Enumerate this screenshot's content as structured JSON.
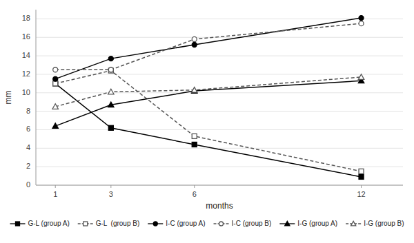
{
  "chart_data": {
    "type": "line",
    "x": [
      1,
      3,
      6,
      12
    ],
    "series": [
      {
        "name": "G-L (group A)",
        "values": [
          11.0,
          6.2,
          4.4,
          0.9
        ],
        "color": "#000000",
        "line_style": "solid",
        "marker": "square"
      },
      {
        "name": "G-L  (group B)",
        "values": [
          11.0,
          12.4,
          5.3,
          1.5
        ],
        "color": "#555555",
        "line_style": "dashed",
        "marker": "square"
      },
      {
        "name": "I-C (group A)",
        "values": [
          11.5,
          13.7,
          15.2,
          18.1
        ],
        "color": "#000000",
        "line_style": "solid",
        "marker": "circle"
      },
      {
        "name": "I-C (group B)",
        "values": [
          12.5,
          12.5,
          15.8,
          17.5
        ],
        "color": "#555555",
        "line_style": "dashed",
        "marker": "circle"
      },
      {
        "name": "I-G (group A)",
        "values": [
          6.4,
          8.7,
          10.2,
          11.3
        ],
        "color": "#000000",
        "line_style": "solid",
        "marker": "triangle"
      },
      {
        "name": "I-G (group B)",
        "values": [
          8.5,
          10.1,
          10.3,
          11.7
        ],
        "color": "#555555",
        "line_style": "dashed",
        "marker": "triangle"
      }
    ],
    "xlabel": "months",
    "ylabel": "mm",
    "xlim": [
      0.3,
      13.5
    ],
    "ylim": [
      0,
      19
    ],
    "xticks": [
      1,
      3,
      6,
      12
    ],
    "yticks": [
      0,
      2,
      4,
      6,
      8,
      10,
      12,
      14,
      16,
      18
    ],
    "grid": true,
    "legend": "bottom"
  }
}
